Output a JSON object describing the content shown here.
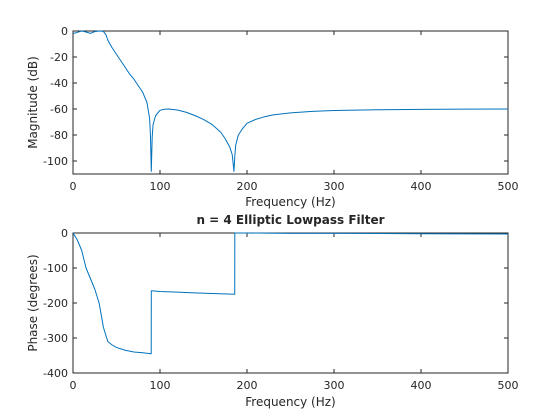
{
  "chart_data": [
    {
      "type": "line",
      "title": "",
      "xlabel": "Frequency (Hz)",
      "ylabel": "Magnitude (dB)",
      "xlim": [
        0,
        500
      ],
      "ylim": [
        -110,
        0
      ],
      "xticks": [
        0,
        100,
        200,
        300,
        400,
        500
      ],
      "yticks": [
        0,
        -20,
        -40,
        -60,
        -80,
        -100
      ],
      "grid": true,
      "color": "#0072BD",
      "x": [
        0,
        5,
        10,
        15,
        20,
        25,
        30,
        35,
        38,
        40,
        45,
        50,
        55,
        60,
        65,
        70,
        75,
        80,
        85,
        88,
        89,
        90,
        91,
        92,
        95,
        100,
        105,
        110,
        120,
        130,
        140,
        150,
        160,
        170,
        175,
        180,
        183,
        185,
        186,
        187,
        190,
        195,
        200,
        210,
        220,
        230,
        250,
        275,
        300,
        350,
        400,
        450,
        500
      ],
      "y": [
        -2.0,
        -1.0,
        0.0,
        -0.8,
        -1.8,
        -0.5,
        0.0,
        -0.3,
        -3,
        -7,
        -13,
        -18,
        -23,
        -28,
        -33,
        -37,
        -42,
        -47,
        -55,
        -67,
        -80,
        -108,
        -82,
        -72,
        -65,
        -61,
        -60.2,
        -60,
        -60.8,
        -62.5,
        -65,
        -68,
        -72,
        -78,
        -83,
        -89,
        -95,
        -108,
        -96,
        -88,
        -80,
        -75,
        -71,
        -68,
        -66,
        -64.5,
        -63,
        -61.8,
        -61.2,
        -60.6,
        -60.3,
        -60.1,
        -60.0
      ]
    },
    {
      "type": "line",
      "title": "n = 4 Elliptic Lowpass Filter",
      "xlabel": "Frequency (Hz)",
      "ylabel": "Phase (degrees)",
      "xlim": [
        0,
        500
      ],
      "ylim": [
        -400,
        0
      ],
      "xticks": [
        0,
        100,
        200,
        300,
        400,
        500
      ],
      "yticks": [
        0,
        -100,
        -200,
        -300,
        -400
      ],
      "grid": true,
      "color": "#0072BD",
      "x": [
        0,
        5,
        10,
        15,
        20,
        25,
        30,
        35,
        40,
        45,
        50,
        60,
        70,
        80,
        89.9,
        90,
        100,
        120,
        140,
        160,
        185.9,
        186,
        200,
        250,
        300,
        400,
        500
      ],
      "y": [
        0,
        -20,
        -50,
        -100,
        -130,
        -160,
        -200,
        -270,
        -310,
        -320,
        -327,
        -335,
        -340,
        -342,
        -345,
        -165,
        -167,
        -169,
        -171,
        -173,
        -175,
        0,
        0,
        -1,
        -1,
        -2,
        -3
      ]
    }
  ]
}
